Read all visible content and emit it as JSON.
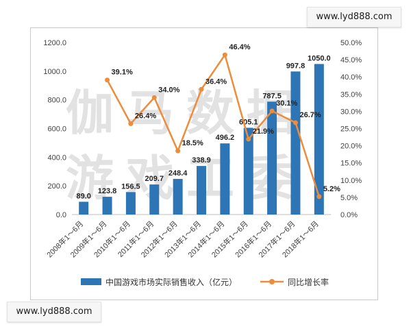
{
  "watermark": {
    "line1": "伽马数据",
    "line2": "游戏工委"
  },
  "badges": {
    "top": "www.lyd888.com",
    "bottom": "www.lyd888.com"
  },
  "colors": {
    "bar": "#2e75b6",
    "line": "#ed8c3a"
  },
  "chart_data": {
    "type": "bar",
    "categories": [
      "2008年1～6月",
      "2009年1～6月",
      "2010年1～6月",
      "2011年1～6月",
      "2012年1～6月",
      "2013年1～6月",
      "2014年1～6月",
      "2015年1～6月",
      "2016年1～6月",
      "2017年1～6月",
      "2018年1～6月"
    ],
    "series": [
      {
        "name": "中国游戏市场实际销售收入（亿元）",
        "type": "bar",
        "axis": "left",
        "values": [
          89.0,
          123.8,
          156.5,
          209.7,
          248.4,
          338.9,
          496.2,
          605.1,
          787.5,
          997.8,
          1050.0
        ]
      },
      {
        "name": "同比增长率",
        "type": "line",
        "axis": "right",
        "values": [
          null,
          39.1,
          26.4,
          34.0,
          18.5,
          36.4,
          46.4,
          21.9,
          30.1,
          26.7,
          5.2
        ]
      }
    ],
    "bar_labels": [
      "89.0",
      "123.8",
      "156.5",
      "209.7",
      "248.4",
      "338.9",
      "496.2",
      "605.1",
      "787.5",
      "997.8",
      "1050.0"
    ],
    "line_labels": [
      "",
      "39.1%",
      "26.4%",
      "34.0%",
      "18.5%",
      "36.4%",
      "46.4%",
      "21.9%",
      "30.1%",
      "26.7%",
      "5.2%"
    ],
    "ylim_left": [
      0,
      1200
    ],
    "yticks_left": [
      "0.0",
      "200.0",
      "400.0",
      "600.0",
      "800.0",
      "1000.0",
      "1200.0"
    ],
    "ylim_right": [
      0,
      50
    ],
    "yticks_right": [
      "0.0%",
      "5.0%",
      "10.0%",
      "15.0%",
      "20.0%",
      "25.0%",
      "30.0%",
      "35.0%",
      "40.0%",
      "45.0%",
      "50.0%"
    ],
    "legend_position": "bottom",
    "grid": false
  }
}
